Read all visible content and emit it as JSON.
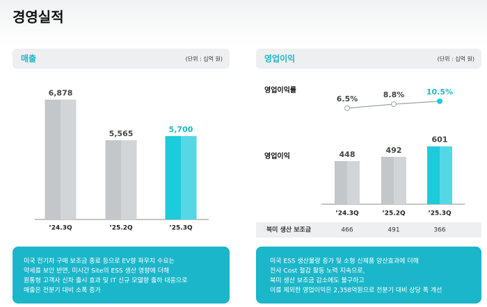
{
  "title": "경영실적",
  "revenue_panel": {
    "heading": "매출",
    "unit": "(단위 : 십억 원)",
    "note": [
      "미국 전기차 구매 보조금 종료 등으로 EV향 파우치 수요는",
      "약세를 보인 반면, 미시간 Site의 ESS 생산 영향에 더해",
      "원통형 고객사 신차 출시 효과 및 IT 신규 모델향 출하 대응으로",
      "매출은 전분기 대비 소폭 증가"
    ]
  },
  "profit_panel": {
    "heading": "영업이익",
    "unit": "(단위 : 십억 원)",
    "table": {
      "label": "북미 생산 보조금",
      "values": [
        "466",
        "491",
        "366"
      ]
    },
    "note": [
      "미국 ESS 생산물량 증가 및 소형 신제품 양산효과에 더해",
      "전사 Cost 절감 활동 노력 지속으로,",
      "북미 생산 보조금 감소에도 불구하고",
      "이를 제외한 영업이익은 2,358억원으로 전분기 대비 상당 폭 개선"
    ]
  },
  "chart_data": [
    {
      "type": "bar",
      "categories": [
        "’24.3Q",
        "’25.2Q",
        "’25.3Q"
      ],
      "values": [
        6878,
        5565,
        5700
      ],
      "value_labels": [
        "6,878",
        "5,565",
        "5,700"
      ],
      "colors": [
        "#c3c7ca",
        "#c3c7ca",
        "#1ccbdc"
      ],
      "label_colors": [
        "#444444",
        "#444444",
        "#1ab8cc"
      ],
      "ylim": [
        3000,
        7000
      ]
    },
    {
      "type": "line",
      "label": "영업이익률",
      "values": [
        6.5,
        8.8,
        10.5
      ],
      "value_labels": [
        "6.5%",
        "8.8%",
        "10.5%"
      ],
      "color": "#9aa3a8",
      "point_colors": [
        "#ffffff",
        "#ffffff",
        "#1ccbdc"
      ],
      "label_colors": [
        "#444444",
        "#444444",
        "#1ab8cc"
      ],
      "ylim": [
        0,
        20
      ]
    },
    {
      "type": "bar",
      "label": "영업이익",
      "categories": [
        "’24.3Q",
        "’25.2Q",
        "’25.3Q"
      ],
      "values": [
        448,
        492,
        601
      ],
      "colors": [
        "#c3c7ca",
        "#c3c7ca",
        "#1ccbdc"
      ],
      "label_colors": [
        "#444444",
        "#444444",
        "#444444"
      ],
      "ylim": [
        0,
        700
      ]
    }
  ]
}
